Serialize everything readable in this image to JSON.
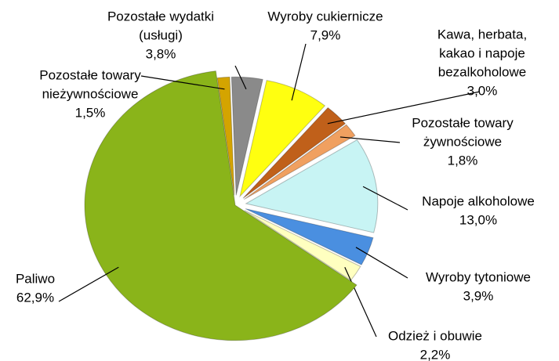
{
  "chart_data": {
    "type": "pie",
    "categories": [
      [
        "Pozostałe wydatki",
        "(usługi)"
      ],
      [
        "Wyroby cukiernicze"
      ],
      [
        "Kawa, herbata,",
        "kakao i napoje",
        "bezalkoholowe"
      ],
      [
        "Pozostałe towary",
        "żywnościowe"
      ],
      [
        "Napoje alkoholowe"
      ],
      [
        "Wyroby tytoniowe"
      ],
      [
        "Odzież i obuwie"
      ],
      [
        "Paliwo"
      ],
      [
        "Pozostałe towary",
        "nieżywnościowe"
      ]
    ],
    "values": [
      3.8,
      7.9,
      3.0,
      1.8,
      13.0,
      3.9,
      2.2,
      62.9,
      1.5
    ],
    "value_labels": [
      "3,8%",
      "7,9%",
      "3,0%",
      "1,8%",
      "13,0%",
      "3,9%",
      "2,2%",
      "62,9%",
      "1,5%"
    ],
    "colors": [
      "#8a8a8a",
      "#ffff10",
      "#c0601a",
      "#f0a060",
      "#c8f4f4",
      "#4a8fe0",
      "#ffffc0",
      "#8ab41a",
      "#d4a400"
    ]
  }
}
